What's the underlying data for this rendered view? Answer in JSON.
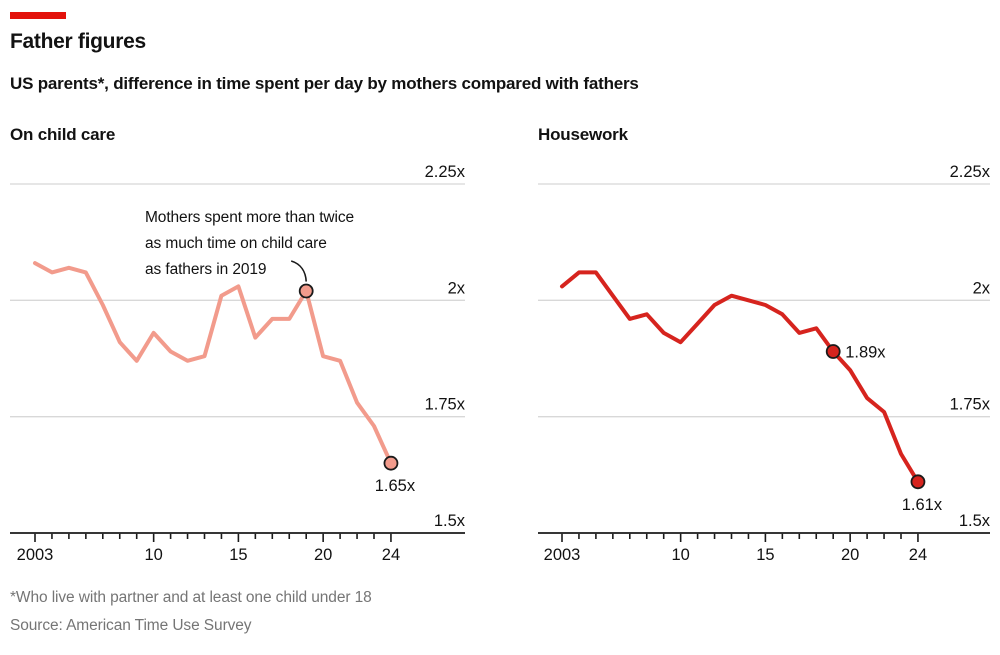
{
  "header": {
    "title": "Father figures",
    "subtitle": "US parents*, difference in time spent per day by mothers compared with fathers"
  },
  "footer": {
    "footnote": "*Who live with partner and at least one child under 18",
    "source": "Source: American Time Use Survey"
  },
  "colors": {
    "accent_red": "#e3120b",
    "childcare_line": "#f29b8c",
    "housework_line": "#d6241e",
    "gridline": "#d8d8d8",
    "axis": "#1a1a1a",
    "text": "#121212",
    "muted_text": "#757575"
  },
  "axis": {
    "y_range": [
      1.5,
      2.25
    ],
    "grid": true,
    "y_ticks": [
      {
        "value": 2.25,
        "label": "2.25x"
      },
      {
        "value": 2.0,
        "label": "2x"
      },
      {
        "value": 1.75,
        "label": "1.75x"
      },
      {
        "value": 1.5,
        "label": "1.5x"
      }
    ],
    "x_labels": [
      {
        "year": 2003,
        "label": "2003"
      },
      {
        "year": 2010,
        "label": "10"
      },
      {
        "year": 2015,
        "label": "15"
      },
      {
        "year": 2020,
        "label": "20"
      },
      {
        "year": 2024,
        "label": "24"
      }
    ],
    "x_range": [
      2003,
      2024
    ]
  },
  "chart_data": [
    {
      "type": "line",
      "title": "On child care",
      "x": [
        2003,
        2004,
        2005,
        2006,
        2007,
        2008,
        2009,
        2010,
        2011,
        2012,
        2013,
        2014,
        2015,
        2016,
        2017,
        2018,
        2019,
        2020,
        2021,
        2022,
        2023,
        2024
      ],
      "values": [
        2.08,
        2.06,
        2.07,
        2.06,
        1.99,
        1.91,
        1.87,
        1.93,
        1.89,
        1.87,
        1.88,
        2.01,
        2.03,
        1.92,
        1.96,
        1.96,
        2.02,
        1.88,
        1.87,
        1.78,
        1.73,
        1.65
      ],
      "annotation": {
        "lines": [
          "Mothers spent more than twice",
          "as much time on child care",
          "as fathers in 2019"
        ],
        "target_year": 2019
      },
      "markers": [
        {
          "year": 2019,
          "value": 2.02,
          "label": "",
          "label_pos": "none"
        },
        {
          "year": 2024,
          "value": 1.65,
          "label": "1.65x",
          "label_pos": "below"
        }
      ]
    },
    {
      "type": "line",
      "title": "Housework",
      "x": [
        2003,
        2004,
        2005,
        2006,
        2007,
        2008,
        2009,
        2010,
        2011,
        2012,
        2013,
        2014,
        2015,
        2016,
        2017,
        2018,
        2019,
        2020,
        2021,
        2022,
        2023,
        2024
      ],
      "values": [
        2.03,
        2.06,
        2.06,
        2.01,
        1.96,
        1.97,
        1.93,
        1.91,
        1.95,
        1.99,
        2.01,
        2.0,
        1.99,
        1.97,
        1.93,
        1.94,
        1.89,
        1.85,
        1.79,
        1.76,
        1.67,
        1.61
      ],
      "markers": [
        {
          "year": 2019,
          "value": 1.89,
          "label": "1.89x",
          "label_pos": "right"
        },
        {
          "year": 2024,
          "value": 1.61,
          "label": "1.61x",
          "label_pos": "below"
        }
      ]
    }
  ]
}
